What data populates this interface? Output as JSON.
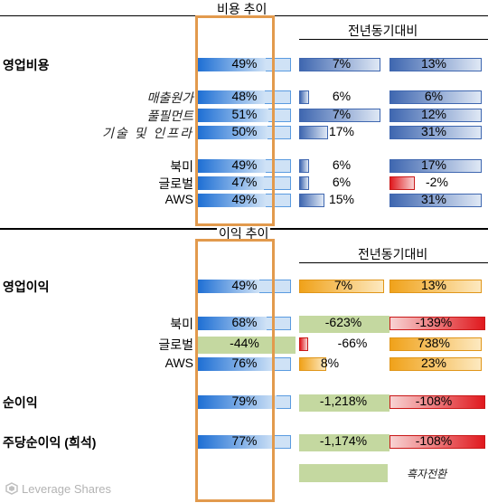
{
  "colors": {
    "blue_dark": "#1e6fd4",
    "blue_light": "#cfe2f6",
    "steel_dark": "#3f67b0",
    "steel_light": "#dfe8f5",
    "orange_dark": "#f0a21a",
    "orange_light": "#fde9c0",
    "red_dark": "#e0191e",
    "red_light": "#f8d3d3",
    "green": "#c4d8a0",
    "frame": "#e29a4d"
  },
  "cost_section": {
    "title": "비용 추이",
    "yoy_header": "전년동기대비",
    "rows": [
      {
        "label": "영업비용",
        "style": "bold",
        "ratio": "49%",
        "yoy1": "7%",
        "yoy2": "13%"
      },
      {
        "label": "매출원가",
        "style": "italic",
        "ratio": "48%",
        "yoy1": "6%",
        "yoy2": "6%"
      },
      {
        "label": "풀필먼트",
        "style": "italic",
        "ratio": "51%",
        "yoy1": "7%",
        "yoy2": "12%"
      },
      {
        "label": "기술 및 인프라",
        "style": "italic",
        "ratio": "50%",
        "yoy1": "17%",
        "yoy2": "31%"
      },
      {
        "label": "북미",
        "style": "normal",
        "ratio": "49%",
        "yoy1": "6%",
        "yoy2": "17%"
      },
      {
        "label": "글로벌",
        "style": "normal",
        "ratio": "47%",
        "yoy1": "6%",
        "yoy2": "-2%"
      },
      {
        "label": "AWS",
        "style": "normal",
        "ratio": "49%",
        "yoy1": "15%",
        "yoy2": "31%"
      }
    ]
  },
  "profit_section": {
    "title": "이익 추이",
    "yoy_header": "전년동기대비",
    "rows": [
      {
        "label": "영업이익",
        "ratio": "49%",
        "yoy1": "7%",
        "yoy2": "13%"
      },
      {
        "label": "북미",
        "ratio": "68%",
        "yoy1": "-623%",
        "yoy2": "-139%"
      },
      {
        "label": "글로벌",
        "ratio": "-44%",
        "yoy1": "-66%",
        "yoy2": "738%"
      },
      {
        "label": "AWS",
        "ratio": "76%",
        "yoy1": "8%",
        "yoy2": "23%"
      },
      {
        "label": "순이익",
        "ratio": "79%",
        "yoy1": "-1,218%",
        "yoy2": "-108%"
      },
      {
        "label": "주당순이익 (희석)",
        "ratio": "77%",
        "yoy1": "-1,174%",
        "yoy2": "-108%"
      }
    ],
    "legend_label": "흑자전환"
  },
  "chart_data": {
    "type": "bar",
    "sections": [
      {
        "title": "비용 추이",
        "column_header": "전년동기대비",
        "categories": [
          "영업비용",
          "매출원가",
          "풀필먼트",
          "기술 및 인프라",
          "북미",
          "글로벌",
          "AWS"
        ],
        "series": [
          {
            "values": [
              49,
              48,
              51,
              50,
              49,
              47,
              49
            ]
          },
          {
            "values": [
              7,
              6,
              7,
              17,
              6,
              6,
              15
            ]
          },
          {
            "values": [
              13,
              6,
              12,
              31,
              17,
              -2,
              31
            ]
          }
        ]
      },
      {
        "title": "이익 추이",
        "column_header": "전년동기대비",
        "categories": [
          "영업이익",
          "북미",
          "글로벌",
          "AWS",
          "순이익",
          "주당순이익 (희석)"
        ],
        "series": [
          {
            "values": [
              49,
              68,
              -44,
              76,
              79,
              77
            ]
          },
          {
            "values": [
              7,
              -623,
              -66,
              8,
              -1218,
              -1174
            ]
          },
          {
            "values": [
              13,
              -139,
              738,
              23,
              -108,
              -108
            ]
          }
        ]
      }
    ],
    "legend": [
      "흑자전환"
    ]
  },
  "brand": {
    "name": "Leverage Shares"
  }
}
